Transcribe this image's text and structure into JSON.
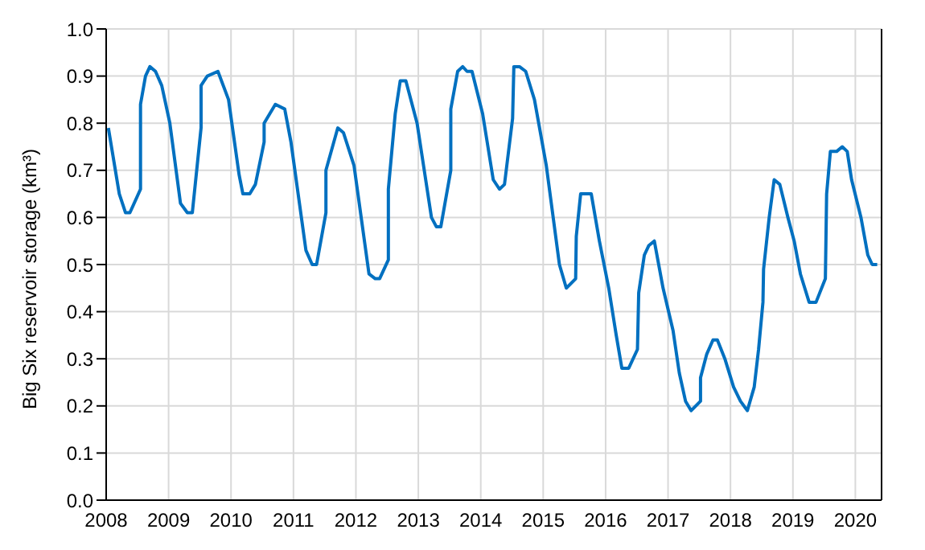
{
  "chart_data": {
    "type": "line",
    "ylabel": "Big Six reservoir storage (km³)",
    "x": [
      2008.035,
      2008.21,
      2008.31,
      2008.38,
      2008.55,
      2008.55,
      2008.63,
      2008.7,
      2008.79,
      2008.89,
      2009.02,
      2009.19,
      2009.3,
      2009.38,
      2009.52,
      2009.52,
      2009.62,
      2009.79,
      2009.96,
      2010.13,
      2010.19,
      2010.3,
      2010.39,
      2010.53,
      2010.53,
      2010.71,
      2010.86,
      2010.96,
      2011.2,
      2011.3,
      2011.37,
      2011.52,
      2011.52,
      2011.71,
      2011.8,
      2011.97,
      2012.21,
      2012.31,
      2012.38,
      2012.52,
      2012.52,
      2012.63,
      2012.71,
      2012.8,
      2012.86,
      2012.98,
      2013.21,
      2013.29,
      2013.36,
      2013.52,
      2013.52,
      2013.63,
      2013.71,
      2013.78,
      2013.86,
      2014.03,
      2014.2,
      2014.3,
      2014.38,
      2014.51,
      2014.53,
      2014.62,
      2014.72,
      2014.86,
      2015.05,
      2015.26,
      2015.37,
      2015.52,
      2015.53,
      2015.6,
      2015.69,
      2015.77,
      2015.9,
      2016.05,
      2016.17,
      2016.26,
      2016.37,
      2016.51,
      2016.53,
      2016.62,
      2016.69,
      2016.78,
      2016.92,
      2017.08,
      2017.18,
      2017.28,
      2017.37,
      2017.52,
      2017.52,
      2017.62,
      2017.72,
      2017.79,
      2017.91,
      2018.05,
      2018.16,
      2018.27,
      2018.38,
      2018.45,
      2018.52,
      2018.53,
      2018.62,
      2018.7,
      2018.79,
      2018.92,
      2019.02,
      2019.12,
      2019.26,
      2019.37,
      2019.52,
      2019.54,
      2019.6,
      2019.7,
      2019.79,
      2019.87,
      2019.94,
      2020.09,
      2020.2,
      2020.27,
      2020.35
    ],
    "series": [
      {
        "color": "#0070c0",
        "values": [
          0.79,
          0.65,
          0.61,
          0.61,
          0.66,
          0.84,
          0.9,
          0.92,
          0.91,
          0.88,
          0.8,
          0.63,
          0.61,
          0.61,
          0.79,
          0.88,
          0.9,
          0.91,
          0.85,
          0.69,
          0.65,
          0.65,
          0.67,
          0.76,
          0.8,
          0.84,
          0.83,
          0.76,
          0.53,
          0.5,
          0.5,
          0.61,
          0.7,
          0.79,
          0.78,
          0.71,
          0.48,
          0.47,
          0.47,
          0.51,
          0.66,
          0.82,
          0.89,
          0.89,
          0.86,
          0.8,
          0.6,
          0.58,
          0.58,
          0.7,
          0.83,
          0.91,
          0.92,
          0.91,
          0.91,
          0.82,
          0.68,
          0.66,
          0.67,
          0.81,
          0.92,
          0.92,
          0.91,
          0.85,
          0.71,
          0.5,
          0.45,
          0.47,
          0.56,
          0.65,
          0.65,
          0.65,
          0.55,
          0.45,
          0.35,
          0.28,
          0.28,
          0.32,
          0.44,
          0.52,
          0.54,
          0.55,
          0.45,
          0.36,
          0.27,
          0.21,
          0.19,
          0.21,
          0.26,
          0.31,
          0.34,
          0.34,
          0.3,
          0.24,
          0.21,
          0.19,
          0.24,
          0.32,
          0.42,
          0.49,
          0.6,
          0.68,
          0.67,
          0.6,
          0.55,
          0.48,
          0.42,
          0.42,
          0.47,
          0.65,
          0.74,
          0.74,
          0.75,
          0.74,
          0.68,
          0.6,
          0.52,
          0.5,
          0.5
        ]
      }
    ],
    "xlim": [
      2008,
      2020.42
    ],
    "xticks": [
      2008,
      2009,
      2010,
      2011,
      2012,
      2013,
      2014,
      2015,
      2016,
      2017,
      2018,
      2019,
      2020
    ],
    "ylim": [
      0,
      1
    ],
    "yticks": [
      {
        "value": 0,
        "label": "0.0"
      },
      {
        "value": 0.1,
        "label": "0.1"
      },
      {
        "value": 0.2,
        "label": "0.2"
      },
      {
        "value": 0.3,
        "label": "0.3"
      },
      {
        "value": 0.4,
        "label": "0.4"
      },
      {
        "value": 0.5,
        "label": "0.5"
      },
      {
        "value": 0.6,
        "label": "0.6"
      },
      {
        "value": 0.7,
        "label": "0.7"
      },
      {
        "value": 0.8,
        "label": "0.8"
      },
      {
        "value": 0.9,
        "label": "0.9"
      },
      {
        "value": 1,
        "label": "1.0"
      }
    ],
    "grid": true,
    "legend": false,
    "marker": "none",
    "line_style": "solid"
  }
}
